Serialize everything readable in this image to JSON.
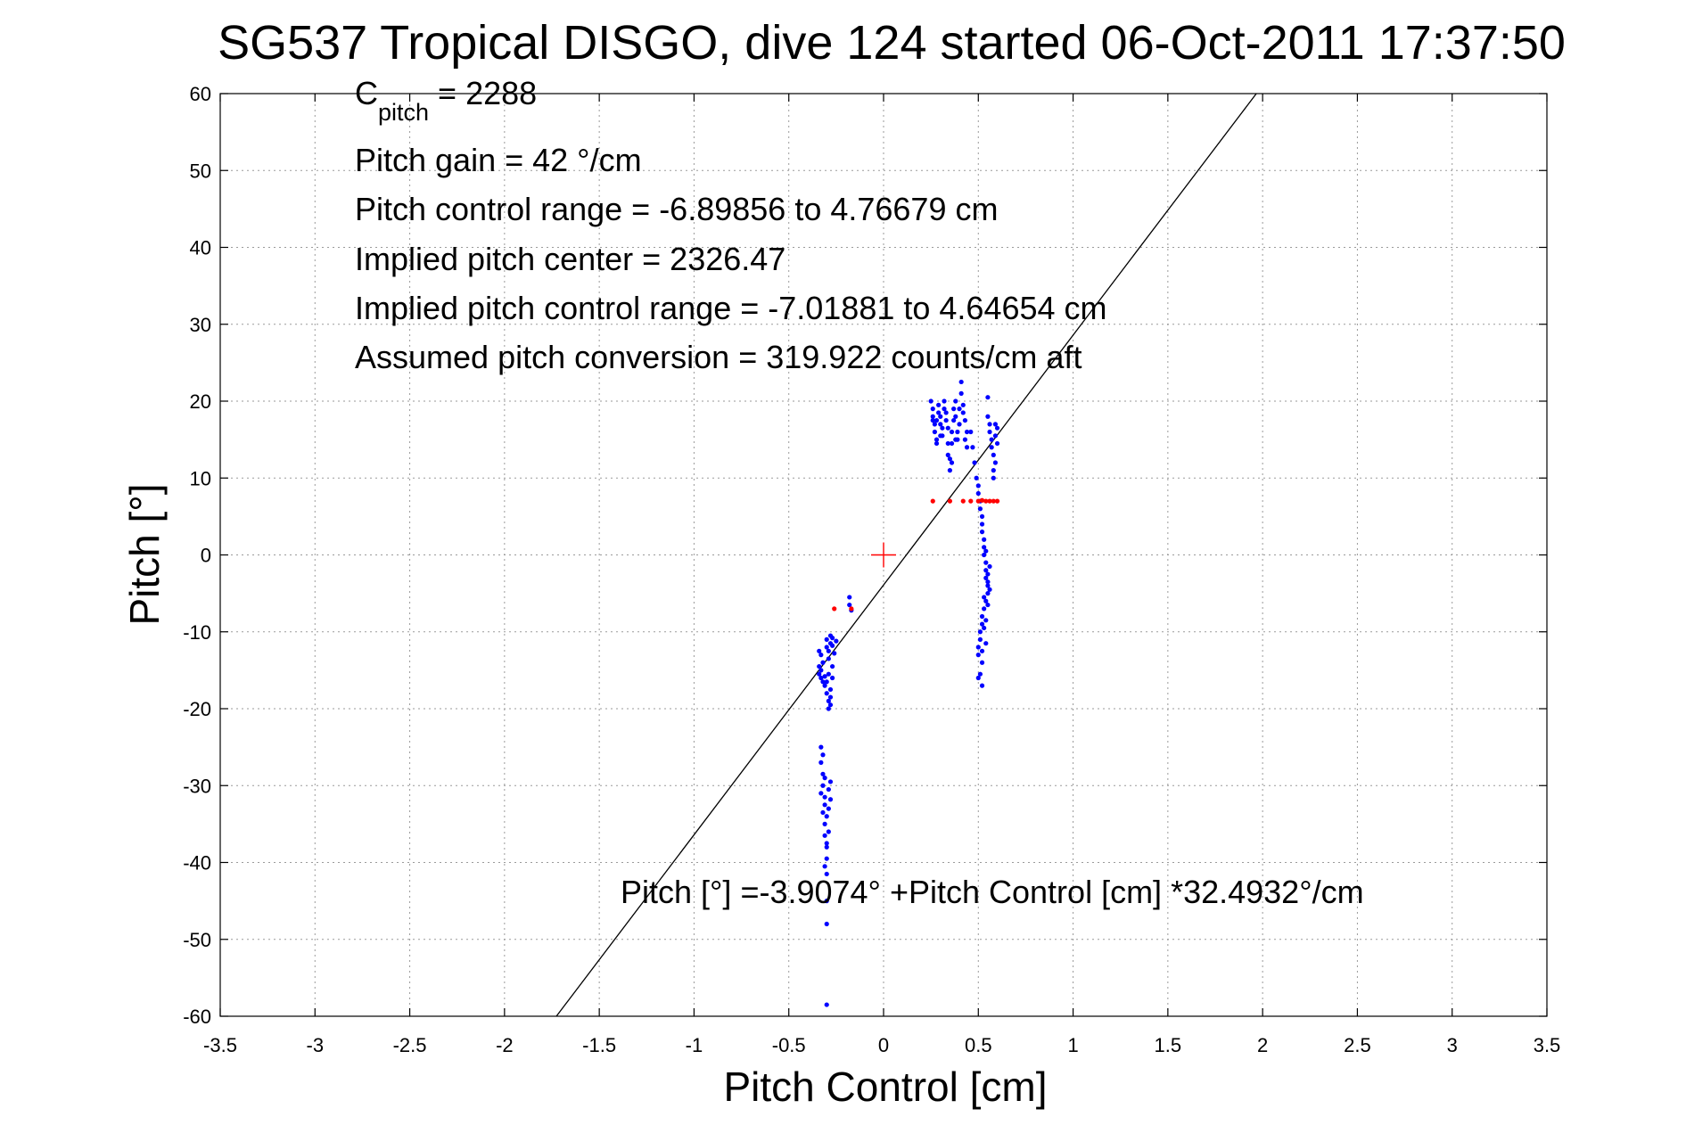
{
  "chart_data": {
    "type": "scatter",
    "title": "SG537 Tropical DISGO, dive 124 started 06-Oct-2011 17:37:50",
    "xlabel": "Pitch Control [cm]",
    "ylabel": "Pitch [°]",
    "xlim": [
      -3.5,
      3.5
    ],
    "ylim": [
      -60,
      60
    ],
    "grid": true,
    "x_ticks": [
      -3.5,
      -3,
      -2.5,
      -2,
      -1.5,
      -1,
      -0.5,
      0,
      0.5,
      1,
      1.5,
      2,
      2.5,
      3,
      3.5
    ],
    "y_ticks": [
      -60,
      -50,
      -40,
      -30,
      -20,
      -10,
      0,
      10,
      20,
      30,
      40,
      50,
      60
    ],
    "x_tick_labels": [
      "-3.5",
      "-3",
      "-2.5",
      "-2",
      "-1.5",
      "-1",
      "-0.5",
      "0",
      "0.5",
      "1",
      "1.5",
      "2",
      "2.5",
      "3",
      "3.5"
    ],
    "y_tick_labels": [
      "-60",
      "-50",
      "-40",
      "-30",
      "-20",
      "-10",
      "0",
      "10",
      "20",
      "30",
      "40",
      "50",
      "60"
    ],
    "annotations": {
      "c_pitch_main": "C",
      "c_pitch_sub": "pitch",
      "c_pitch_value": " = 2288",
      "pitch_gain": "Pitch gain = 42 °/cm",
      "pitch_control_range": "Pitch control range = -6.89856 to 4.76679 cm",
      "implied_pitch_center": "Implied pitch center = 2326.47",
      "implied_pitch_control_range": "Implied pitch control range = -7.01881 to 4.64654 cm",
      "assumed_pitch_conversion": "Assumed pitch conversion = 319.922 counts/cm aft",
      "fit_equation": "Pitch [°] =-3.9074° +Pitch Control [cm] *32.4932°/cm"
    },
    "fit_line": {
      "intercept": -3.9074,
      "slope": 32.4932,
      "color": "#000000"
    },
    "center_marker": {
      "x": 0,
      "y": 0,
      "color": "#ff0000"
    },
    "series": [
      {
        "color": "#0000ff",
        "points": [
          [
            -0.34,
            -14.5
          ],
          [
            -0.34,
            -15.5
          ],
          [
            -0.33,
            -16.0
          ],
          [
            -0.33,
            -15.0
          ],
          [
            -0.32,
            -16.5
          ],
          [
            -0.32,
            -14.0
          ],
          [
            -0.33,
            -13.0
          ],
          [
            -0.34,
            -12.5
          ],
          [
            -0.31,
            -15.8
          ],
          [
            -0.31,
            -17.0
          ],
          [
            -0.3,
            -12.0
          ],
          [
            -0.3,
            -11.0
          ],
          [
            -0.29,
            -13.5
          ],
          [
            -0.29,
            -12.5
          ],
          [
            -0.28,
            -11.5
          ],
          [
            -0.28,
            -10.5
          ],
          [
            -0.27,
            -10.8
          ],
          [
            -0.27,
            -11.8
          ],
          [
            -0.3,
            -18.0
          ],
          [
            -0.29,
            -19.0
          ],
          [
            -0.29,
            -20.0
          ],
          [
            -0.28,
            -19.5
          ],
          [
            -0.28,
            -18.5
          ],
          [
            -0.28,
            -17.5
          ],
          [
            -0.27,
            -16.0
          ],
          [
            -0.27,
            -14.5
          ],
          [
            -0.3,
            -16.5
          ],
          [
            -0.29,
            -15.5
          ],
          [
            -0.26,
            -12.8
          ],
          [
            -0.25,
            -11.2
          ],
          [
            -0.33,
            -25.0
          ],
          [
            -0.33,
            -27.0
          ],
          [
            -0.32,
            -28.5
          ],
          [
            -0.32,
            -30.0
          ],
          [
            -0.33,
            -31.0
          ],
          [
            -0.31,
            -32.5
          ],
          [
            -0.32,
            -33.5
          ],
          [
            -0.31,
            -35.0
          ],
          [
            -0.31,
            -36.5
          ],
          [
            -0.3,
            -38.0
          ],
          [
            -0.3,
            -39.5
          ],
          [
            -0.31,
            -40.5
          ],
          [
            -0.3,
            -41.5
          ],
          [
            -0.32,
            -26.0
          ],
          [
            -0.31,
            -29.0
          ],
          [
            -0.31,
            -31.5
          ],
          [
            -0.3,
            -34.0
          ],
          [
            -0.29,
            -30.5
          ],
          [
            -0.29,
            -33.0
          ],
          [
            -0.28,
            -29.5
          ],
          [
            -0.28,
            -31.8
          ],
          [
            -0.29,
            -36.0
          ],
          [
            -0.3,
            -37.5
          ],
          [
            -0.3,
            -45.0
          ],
          [
            -0.3,
            -48.0
          ],
          [
            -0.3,
            -58.5
          ],
          [
            -0.18,
            -5.5
          ],
          [
            -0.18,
            -6.5
          ],
          [
            -0.17,
            -7.2
          ],
          [
            0.25,
            20.0
          ],
          [
            0.26,
            19.0
          ],
          [
            0.26,
            18.0
          ],
          [
            0.27,
            17.0
          ],
          [
            0.27,
            16.0
          ],
          [
            0.28,
            15.0
          ],
          [
            0.28,
            17.5
          ],
          [
            0.29,
            18.5
          ],
          [
            0.29,
            19.5
          ],
          [
            0.3,
            18.0
          ],
          [
            0.3,
            17.0
          ],
          [
            0.31,
            16.5
          ],
          [
            0.31,
            15.5
          ],
          [
            0.32,
            19.0
          ],
          [
            0.32,
            20.0
          ],
          [
            0.33,
            18.5
          ],
          [
            0.33,
            17.5
          ],
          [
            0.34,
            16.5
          ],
          [
            0.34,
            13.0
          ],
          [
            0.35,
            11.0
          ],
          [
            0.35,
            12.5
          ],
          [
            0.36,
            14.5
          ],
          [
            0.36,
            16.0
          ],
          [
            0.37,
            17.5
          ],
          [
            0.37,
            19.0
          ],
          [
            0.38,
            20.0
          ],
          [
            0.38,
            18.0
          ],
          [
            0.39,
            16.0
          ],
          [
            0.39,
            15.0
          ],
          [
            0.4,
            17.0
          ],
          [
            0.4,
            19.0
          ],
          [
            0.41,
            21.0
          ],
          [
            0.41,
            22.5
          ],
          [
            0.42,
            19.5
          ],
          [
            0.42,
            18.5
          ],
          [
            0.43,
            17.5
          ],
          [
            0.43,
            15.0
          ],
          [
            0.44,
            14.0
          ],
          [
            0.44,
            16.0
          ],
          [
            0.28,
            14.5
          ],
          [
            0.26,
            17.5
          ],
          [
            0.3,
            15.5
          ],
          [
            0.34,
            14.5
          ],
          [
            0.36,
            12.0
          ],
          [
            0.38,
            15.0
          ],
          [
            0.46,
            16.0
          ],
          [
            0.47,
            14.0
          ],
          [
            0.48,
            12.0
          ],
          [
            0.49,
            10.0
          ],
          [
            0.5,
            9.0
          ],
          [
            0.5,
            8.0
          ],
          [
            0.51,
            7.0
          ],
          [
            0.51,
            6.0
          ],
          [
            0.52,
            5.0
          ],
          [
            0.52,
            4.0
          ],
          [
            0.52,
            3.0
          ],
          [
            0.53,
            2.0
          ],
          [
            0.53,
            1.0
          ],
          [
            0.53,
            0.0
          ],
          [
            0.54,
            -1.0
          ],
          [
            0.54,
            -2.0
          ],
          [
            0.54,
            -3.0
          ],
          [
            0.55,
            -4.0
          ],
          [
            0.55,
            -5.0
          ],
          [
            0.54,
            -6.0
          ],
          [
            0.53,
            -7.0
          ],
          [
            0.52,
            -8.0
          ],
          [
            0.52,
            -9.0
          ],
          [
            0.51,
            -10.0
          ],
          [
            0.51,
            -11.0
          ],
          [
            0.5,
            -12.0
          ],
          [
            0.5,
            -13.0
          ],
          [
            0.52,
            -14.0
          ],
          [
            0.51,
            -15.5
          ],
          [
            0.52,
            -17.0
          ],
          [
            0.55,
            -2.5
          ],
          [
            0.55,
            -3.5
          ],
          [
            0.56,
            -4.5
          ],
          [
            0.56,
            -1.5
          ],
          [
            0.54,
            0.5
          ],
          [
            0.53,
            -5.5
          ],
          [
            0.55,
            -6.5
          ],
          [
            0.54,
            -8.5
          ],
          [
            0.53,
            -9.5
          ],
          [
            0.54,
            -11.5
          ],
          [
            0.52,
            -12.5
          ],
          [
            0.5,
            -16.0
          ],
          [
            0.55,
            20.5
          ],
          [
            0.55,
            18.0
          ],
          [
            0.56,
            17.0
          ],
          [
            0.56,
            16.0
          ],
          [
            0.57,
            15.0
          ],
          [
            0.57,
            14.0
          ],
          [
            0.58,
            13.0
          ],
          [
            0.58,
            11.0
          ],
          [
            0.58,
            10.0
          ],
          [
            0.59,
            15.5
          ],
          [
            0.59,
            17.0
          ],
          [
            0.6,
            16.5
          ],
          [
            0.6,
            14.5
          ],
          [
            0.59,
            12.0
          ]
        ]
      },
      {
        "color": "#ff0000",
        "points": [
          [
            0.26,
            7.0
          ],
          [
            0.35,
            7.0
          ],
          [
            0.42,
            7.0
          ],
          [
            0.46,
            7.0
          ],
          [
            0.5,
            7.0
          ],
          [
            0.52,
            7.1
          ],
          [
            0.54,
            7.0
          ],
          [
            0.56,
            7.0
          ],
          [
            0.58,
            7.0
          ],
          [
            0.6,
            7.0
          ],
          [
            -0.26,
            -7.0
          ],
          [
            -0.17,
            -7.0
          ]
        ]
      }
    ]
  }
}
